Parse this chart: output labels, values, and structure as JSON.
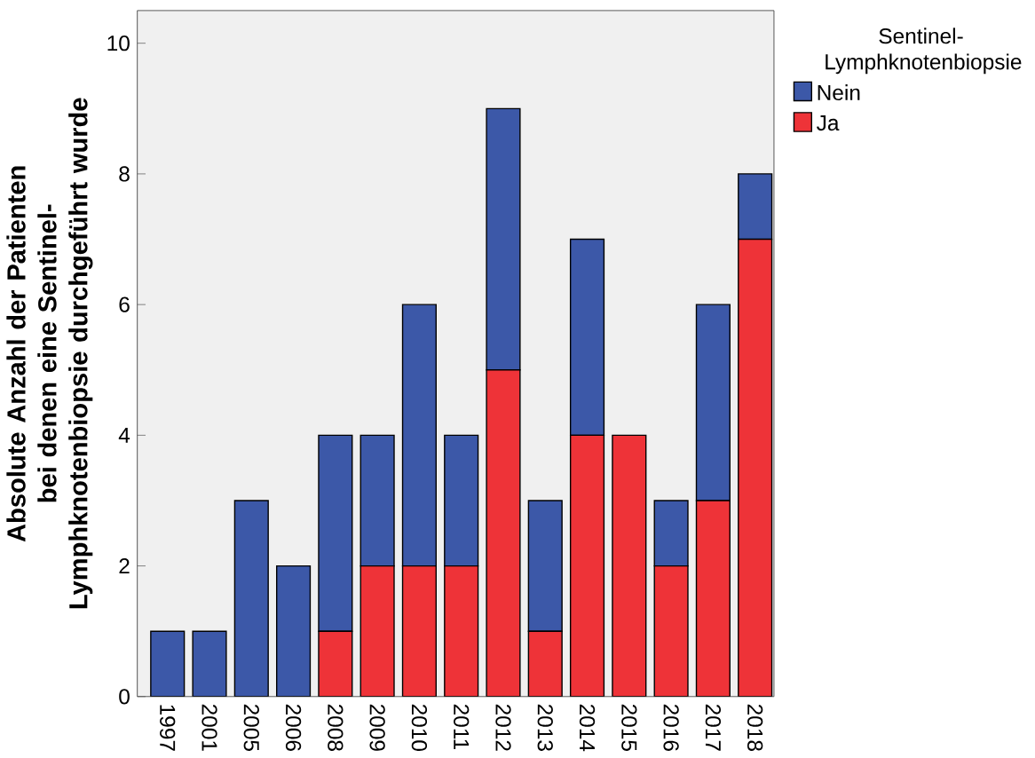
{
  "chart_data": {
    "type": "bar",
    "stacked": true,
    "ylabel": "Absolute Anzahl der Patienten bei denen eine Sentinel-Lymphknotenbiopsie durchgeführt wurde",
    "legend_title": "Sentinel-Lymphknotenbiopsie",
    "categories": [
      "1997",
      "2001",
      "2005",
      "2006",
      "2008",
      "2009",
      "2010",
      "2011",
      "2012",
      "2013",
      "2014",
      "2015",
      "2016",
      "2017",
      "2018"
    ],
    "series": [
      {
        "name": "Ja",
        "color": "#ee3338",
        "values": [
          0,
          0,
          0,
          0,
          1,
          2,
          2,
          2,
          5,
          1,
          4,
          4,
          2,
          3,
          7
        ]
      },
      {
        "name": "Nein",
        "color": "#3c58a8",
        "values": [
          1,
          1,
          3,
          2,
          3,
          2,
          4,
          2,
          4,
          2,
          3,
          0,
          1,
          3,
          1
        ]
      }
    ],
    "ylim": [
      0,
      10.5
    ],
    "yticks": [
      0,
      2,
      4,
      6,
      8,
      10
    ],
    "grid": false,
    "legend": "top right"
  }
}
